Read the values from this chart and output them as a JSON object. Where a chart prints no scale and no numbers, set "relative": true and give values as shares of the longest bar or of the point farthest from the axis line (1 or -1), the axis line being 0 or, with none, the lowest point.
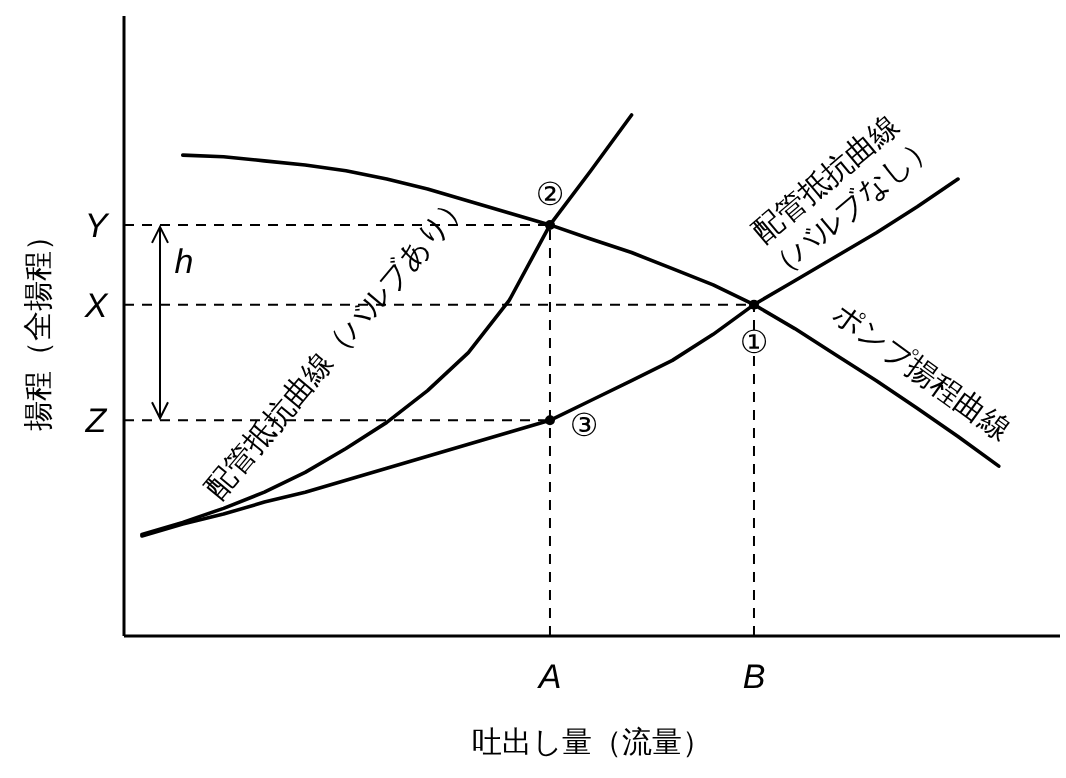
{
  "chart_data": {
    "type": "line",
    "relative": true,
    "xlabel": "吐出し量（流量）",
    "ylabel": "揚程（全揚程）",
    "legend": false,
    "line_style": "solid",
    "categories": [
      null,
      null,
      null,
      null,
      null,
      null,
      null,
      null,
      null,
      null,
      "A",
      null,
      null,
      null,
      null,
      "B",
      null,
      null,
      null,
      null,
      null,
      null,
      null
    ],
    "series": [
      {
        "name": "ポンプ揚程曲線",
        "color": "#000000",
        "values": [
          null,
          0.923,
          0.92,
          0.912,
          0.904,
          0.893,
          0.877,
          0.858,
          0.835,
          0.812,
          0.789,
          0.762,
          0.736,
          0.705,
          0.674,
          0.636,
          0.59,
          0.54,
          0.49,
          0.437,
          0.383,
          0.326,
          null
        ]
      },
      {
        "name": "配管抵抗曲線（バルブあり）",
        "color": "#000000",
        "values": [
          0.195,
          0.218,
          0.245,
          0.276,
          0.314,
          0.36,
          0.41,
          0.471,
          0.544,
          0.644,
          0.789,
          0.893,
          1,
          null,
          null,
          null,
          null,
          null,
          null,
          null,
          null,
          null,
          null
        ]
      },
      {
        "name": "配管抵抗曲線（バルブなし）",
        "color": "#000000",
        "values": [
          0.192,
          0.215,
          0.234,
          0.257,
          0.276,
          0.299,
          0.322,
          0.345,
          0.368,
          0.391,
          0.414,
          0.452,
          0.49,
          0.529,
          0.579,
          0.636,
          0.682,
          0.728,
          0.774,
          0.824,
          0.877,
          null,
          null
        ]
      }
    ],
    "ref_lines": [
      {
        "axis": "y",
        "value": 0.789,
        "label": "Y",
        "color": "#000000",
        "line_style": "dashed"
      },
      {
        "axis": "y",
        "value": 0.636,
        "label": "X",
        "color": "#000000",
        "line_style": "dashed"
      },
      {
        "axis": "y",
        "value": 0.414,
        "label": "Z",
        "color": "#000000",
        "line_style": "dashed"
      },
      {
        "axis": "x",
        "value": "A",
        "color": "#000000",
        "line_style": "dashed"
      },
      {
        "axis": "x",
        "value": "B",
        "color": "#000000",
        "line_style": "dashed"
      }
    ],
    "annotations": [
      {
        "text": "①",
        "x": "B",
        "y": 0.636
      },
      {
        "text": "②",
        "x": "A",
        "y": 0.789
      },
      {
        "text": "③",
        "x": "A",
        "y": 0.414
      },
      {
        "text": "h",
        "y": 0.789
      }
    ]
  }
}
